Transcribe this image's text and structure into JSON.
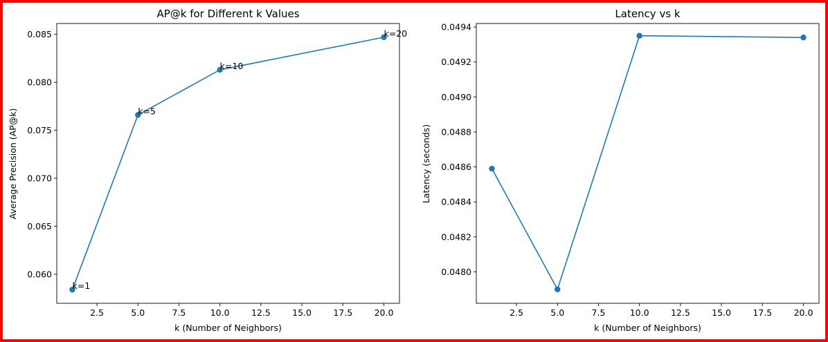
{
  "colors": {
    "series": "#1f77b4",
    "frame": "#ff0000"
  },
  "chart_data": [
    {
      "type": "line",
      "title": "AP@k for Different k Values",
      "xlabel": "k (Number of Neighbors)",
      "ylabel": "Average Precision (AP@k)",
      "x": [
        1,
        5,
        10,
        20
      ],
      "series": [
        {
          "values": [
            0.0584,
            0.0766,
            0.0813,
            0.0847
          ]
        }
      ],
      "point_labels": [
        "k=1",
        "k=5",
        "k=10",
        "k=20"
      ],
      "xlim": [
        0.05,
        20.95
      ],
      "ylim": [
        0.05697,
        0.08613
      ],
      "xticks": [
        2.5,
        5.0,
        7.5,
        10.0,
        12.5,
        15.0,
        17.5,
        20.0
      ],
      "xtick_labels": [
        "2.5",
        "5.0",
        "7.5",
        "10.0",
        "12.5",
        "15.0",
        "17.5",
        "20.0"
      ],
      "yticks": [
        0.06,
        0.065,
        0.07,
        0.075,
        0.08,
        0.085
      ],
      "ytick_labels": [
        "0.060",
        "0.065",
        "0.070",
        "0.075",
        "0.080",
        "0.085"
      ],
      "grid": false,
      "marker": "circle"
    },
    {
      "type": "line",
      "title": "Latency vs k",
      "xlabel": "k (Number of Neighbors)",
      "ylabel": "Latency (seconds)",
      "x": [
        1,
        5,
        10,
        20
      ],
      "series": [
        {
          "values": [
            0.04859,
            0.0479,
            0.04935,
            0.04934
          ]
        }
      ],
      "xlim": [
        0.05,
        20.95
      ],
      "ylim": [
        0.04782,
        0.04942
      ],
      "xticks": [
        2.5,
        5.0,
        7.5,
        10.0,
        12.5,
        15.0,
        17.5,
        20.0
      ],
      "xtick_labels": [
        "2.5",
        "5.0",
        "7.5",
        "10.0",
        "12.5",
        "15.0",
        "17.5",
        "20.0"
      ],
      "yticks": [
        0.048,
        0.0482,
        0.0484,
        0.0486,
        0.0488,
        0.049,
        0.0492,
        0.0494
      ],
      "ytick_labels": [
        "0.0480",
        "0.0482",
        "0.0484",
        "0.0486",
        "0.0488",
        "0.0490",
        "0.0492",
        "0.0494"
      ],
      "grid": false,
      "marker": "circle"
    }
  ]
}
